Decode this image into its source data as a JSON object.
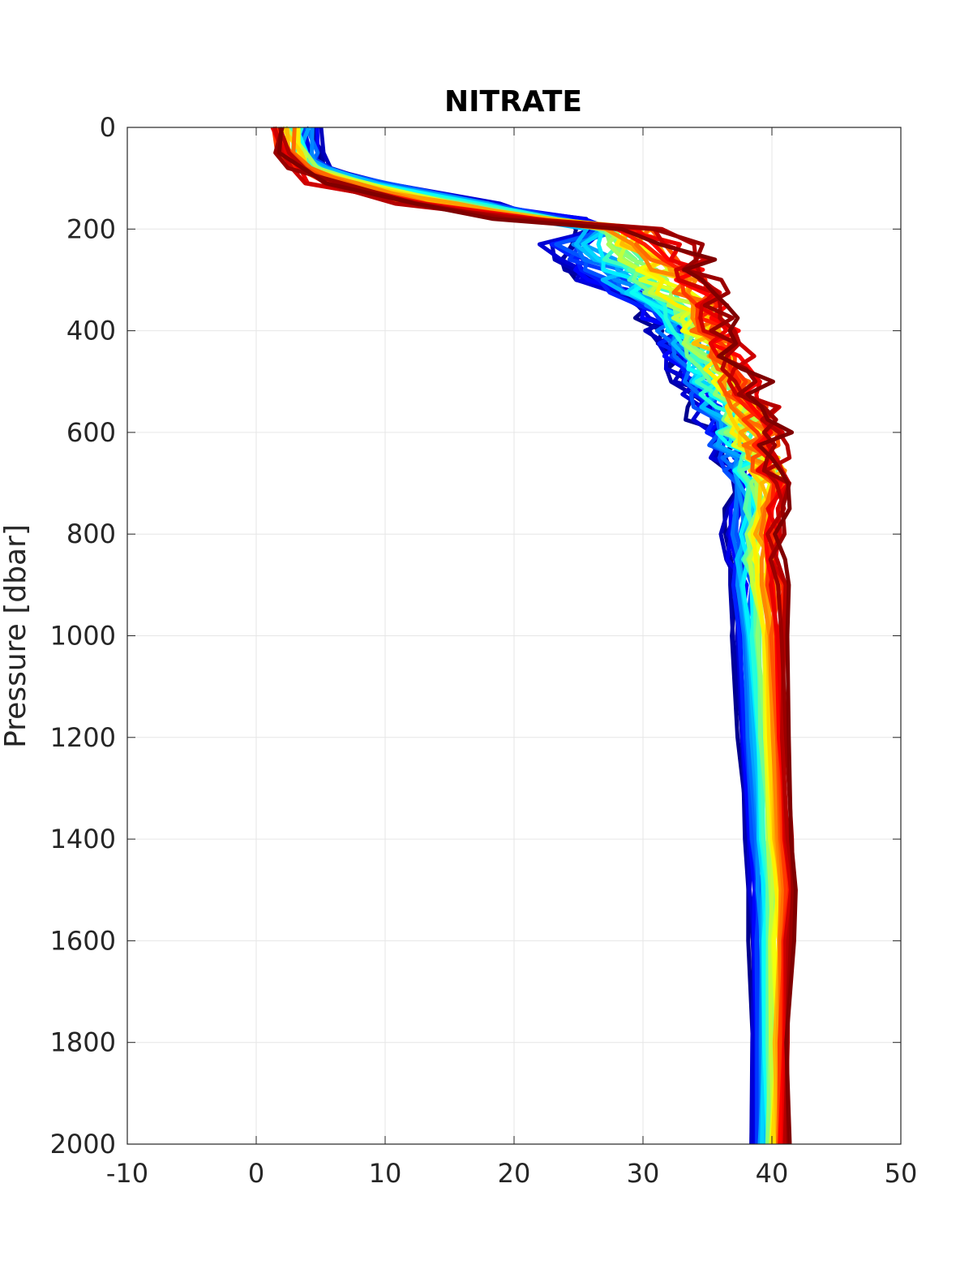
{
  "chart_data": {
    "type": "line",
    "title": "NITRATE",
    "xlabel": "",
    "ylabel": "Pressure [dbar]",
    "xlim": [
      -10,
      50
    ],
    "ylim": [
      0,
      2000
    ],
    "y_reversed": true,
    "grid": true,
    "legend": "none",
    "x_ticks": [
      -10,
      0,
      10,
      20,
      30,
      40,
      50
    ],
    "y_ticks": [
      0,
      200,
      400,
      600,
      800,
      1000,
      1200,
      1400,
      1600,
      1800,
      2000
    ],
    "colors": {
      "axis": "#262626",
      "grid": "#e6e6e6",
      "colormap": [
        "#00008f",
        "#0000ff",
        "#0080ff",
        "#00ffff",
        "#80ff80",
        "#ffff00",
        "#ff8000",
        "#ff0000",
        "#800000"
      ]
    },
    "profile_group": {
      "count": 40,
      "color_order": "colormap from dark blue (first profile) to dark red (last profile)",
      "pressure": [
        0,
        50,
        80,
        110,
        150,
        180,
        200,
        230,
        260,
        300,
        350,
        400,
        450,
        500,
        550,
        600,
        650,
        700,
        800,
        900,
        1000,
        1200,
        1400,
        1500,
        1600,
        1800,
        2000
      ],
      "first_profile_nitrate": [
        4.5,
        4.8,
        5.5,
        9.0,
        18.0,
        24.0,
        26.5,
        23.0,
        23.5,
        25.5,
        30.0,
        31.5,
        32.5,
        33.5,
        34.5,
        35.0,
        36.5,
        37.0,
        36.5,
        37.0,
        37.0,
        37.5,
        38.0,
        38.2,
        38.3,
        38.5,
        38.5
      ],
      "last_profile_nitrate": [
        1.5,
        1.8,
        3.0,
        5.5,
        12.0,
        20.0,
        30.0,
        33.0,
        34.5,
        35.0,
        35.8,
        36.5,
        37.5,
        38.5,
        39.5,
        40.3,
        40.7,
        41.0,
        40.5,
        40.8,
        41.0,
        41.2,
        41.5,
        41.8,
        41.5,
        41.3,
        41.2
      ]
    }
  }
}
